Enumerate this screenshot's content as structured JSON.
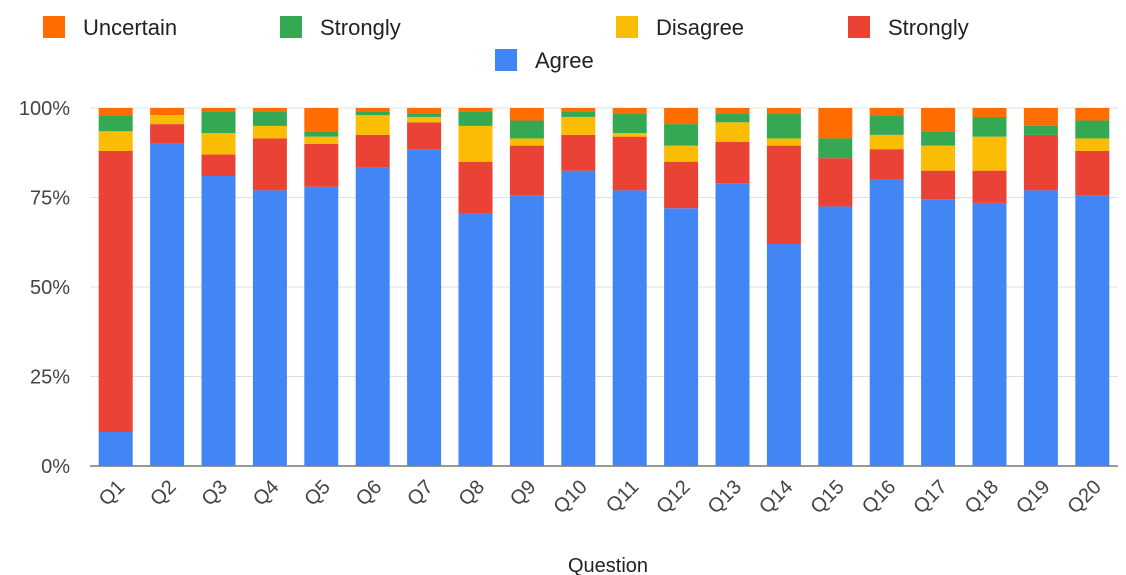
{
  "chart_data": {
    "type": "bar",
    "stacked": true,
    "normalized": true,
    "title": "",
    "xlabel": "Question",
    "ylabel": "",
    "ylim": [
      0,
      100
    ],
    "yticks": [
      "0%",
      "25%",
      "50%",
      "75%",
      "100%"
    ],
    "grid": true,
    "legend_position": "top",
    "categories": [
      "Q1",
      "Q2",
      "Q3",
      "Q4",
      "Q5",
      "Q6",
      "Q7",
      "Q8",
      "Q9",
      "Q10",
      "Q11",
      "Q12",
      "Q13",
      "Q14",
      "Q15",
      "Q16",
      "Q17",
      "Q18",
      "Q19",
      "Q20"
    ],
    "legend_order": [
      "Uncertain",
      "Strongly",
      "Disagree",
      "Strongly",
      "Agree"
    ],
    "series": [
      {
        "name": "Agree",
        "color": "#4285f4",
        "values": [
          9.5,
          90,
          81,
          77,
          78,
          83.5,
          88.5,
          70.5,
          75.5,
          82.5,
          77,
          72,
          79,
          62,
          72.5,
          80,
          74.5,
          73.5,
          77,
          75.5
        ]
      },
      {
        "name": "Strongly",
        "color": "#ea4335",
        "values": [
          78.5,
          5.5,
          6,
          14.5,
          12,
          9,
          7.5,
          14.5,
          14,
          10,
          15,
          13,
          11.5,
          27.5,
          13.5,
          8.5,
          8,
          9,
          15.5,
          12.5
        ]
      },
      {
        "name": "Disagree",
        "color": "#fbbc04",
        "values": [
          5.5,
          2.5,
          6,
          3.5,
          2,
          5.5,
          1.5,
          10,
          2,
          5,
          1,
          4.5,
          5.5,
          2,
          0,
          4,
          7,
          9.5,
          0,
          3.5
        ]
      },
      {
        "name": "Strongly",
        "color": "#34a853",
        "values": [
          4.5,
          0,
          6,
          4,
          1.5,
          1,
          1,
          4,
          5,
          1.5,
          5.5,
          6,
          2.5,
          7,
          5.5,
          5.5,
          4,
          5.5,
          2.5,
          5
        ]
      },
      {
        "name": "Uncertain",
        "color": "#ff6d01",
        "values": [
          2,
          2,
          1,
          1,
          6.5,
          1,
          1.5,
          1,
          3.5,
          1,
          1.5,
          4.5,
          1.5,
          1.5,
          8.5,
          2,
          6.5,
          2.5,
          5,
          3.5
        ]
      }
    ]
  }
}
